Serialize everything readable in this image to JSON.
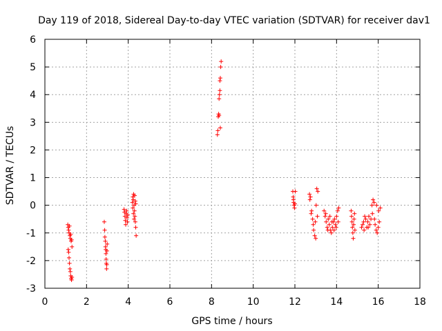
{
  "chart_data": {
    "type": "scatter",
    "title": "Day 119 of 2018, Sidereal Day-to-day VTEC variation (SDTVAR) for receiver dav1",
    "xlabel": "GPS time / hours",
    "ylabel": "SDTVAR / TECUs",
    "xlim": [
      0,
      18
    ],
    "ylim": [
      -3,
      6
    ],
    "x_ticks": [
      0,
      2,
      4,
      6,
      8,
      10,
      12,
      14,
      16,
      18
    ],
    "y_ticks": [
      -3,
      -2,
      -1,
      0,
      1,
      2,
      3,
      4,
      5,
      6
    ],
    "x_tick_labels": [
      "0",
      "2",
      "4",
      "6",
      "8",
      "10",
      "12",
      "14",
      "16",
      "18"
    ],
    "y_tick_labels": [
      "-3",
      "-2",
      "-1",
      "0",
      "1",
      "2",
      "3",
      "4",
      "5",
      "6"
    ],
    "grid": true,
    "marker": "+",
    "color": "#ff0000",
    "series": [
      {
        "name": "dav1",
        "points": [
          [
            1.1,
            -0.7
          ],
          [
            1.12,
            -0.8
          ],
          [
            1.14,
            -0.9
          ],
          [
            1.16,
            -1.0
          ],
          [
            1.18,
            -0.75
          ],
          [
            1.2,
            -1.1
          ],
          [
            1.22,
            -1.2
          ],
          [
            1.24,
            -1.05
          ],
          [
            1.26,
            -1.3
          ],
          [
            1.28,
            -1.25
          ],
          [
            1.3,
            -1.5
          ],
          [
            1.12,
            -1.6
          ],
          [
            1.14,
            -1.7
          ],
          [
            1.16,
            -1.9
          ],
          [
            1.18,
            -2.1
          ],
          [
            1.2,
            -2.3
          ],
          [
            1.22,
            -2.4
          ],
          [
            1.24,
            -2.55
          ],
          [
            1.26,
            -2.65
          ],
          [
            1.28,
            -2.7
          ],
          [
            1.3,
            -2.6
          ],
          [
            2.85,
            -0.6
          ],
          [
            2.87,
            -0.9
          ],
          [
            2.88,
            -1.15
          ],
          [
            2.9,
            -1.3
          ],
          [
            2.91,
            -1.5
          ],
          [
            2.92,
            -1.6
          ],
          [
            2.93,
            -1.75
          ],
          [
            2.94,
            -1.95
          ],
          [
            2.95,
            -2.1
          ],
          [
            2.96,
            -2.3
          ],
          [
            2.97,
            -2.15
          ],
          [
            2.98,
            -1.65
          ],
          [
            2.99,
            -1.4
          ],
          [
            3.8,
            -0.15
          ],
          [
            3.82,
            -0.25
          ],
          [
            3.84,
            -0.4
          ],
          [
            3.86,
            -0.55
          ],
          [
            3.88,
            -0.7
          ],
          [
            3.9,
            -0.3
          ],
          [
            3.92,
            -0.2
          ],
          [
            3.94,
            -0.45
          ],
          [
            3.96,
            -0.6
          ],
          [
            3.98,
            -0.35
          ],
          [
            4.2,
            0.1
          ],
          [
            4.22,
            0.3
          ],
          [
            4.24,
            0.2
          ],
          [
            4.26,
            0.4
          ],
          [
            4.28,
            0.0
          ],
          [
            4.3,
            -0.2
          ],
          [
            4.32,
            -0.4
          ],
          [
            4.34,
            -0.6
          ],
          [
            4.36,
            -0.8
          ],
          [
            4.38,
            -1.1
          ],
          [
            4.22,
            -0.1
          ],
          [
            4.25,
            -0.3
          ],
          [
            4.28,
            -0.5
          ],
          [
            4.31,
            0.35
          ],
          [
            4.34,
            0.15
          ],
          [
            4.36,
            0.05
          ],
          [
            8.28,
            2.55
          ],
          [
            8.3,
            2.7
          ],
          [
            8.32,
            3.2
          ],
          [
            8.34,
            3.3
          ],
          [
            8.36,
            3.85
          ],
          [
            8.38,
            4.0
          ],
          [
            8.4,
            4.5
          ],
          [
            8.42,
            4.6
          ],
          [
            8.44,
            5.0
          ],
          [
            8.46,
            5.2
          ],
          [
            8.4,
            4.15
          ],
          [
            8.36,
            3.25
          ],
          [
            8.42,
            2.8
          ],
          [
            11.9,
            0.5
          ],
          [
            11.92,
            0.3
          ],
          [
            11.94,
            0.1
          ],
          [
            11.96,
            0.0
          ],
          [
            11.98,
            -0.1
          ],
          [
            12.0,
            0.05
          ],
          [
            12.02,
            0.5
          ],
          [
            11.93,
            0.2
          ],
          [
            12.7,
            0.4
          ],
          [
            12.75,
            0.3
          ],
          [
            12.8,
            -0.2
          ],
          [
            12.85,
            -0.5
          ],
          [
            12.9,
            -0.9
          ],
          [
            12.95,
            -1.1
          ],
          [
            13.0,
            -1.2
          ],
          [
            13.05,
            0.6
          ],
          [
            13.1,
            0.5
          ],
          [
            12.72,
            0.2
          ],
          [
            12.78,
            -0.3
          ],
          [
            12.88,
            -0.7
          ],
          [
            12.98,
            -0.6
          ],
          [
            13.02,
            0.0
          ],
          [
            13.08,
            -0.4
          ],
          [
            13.4,
            -0.2
          ],
          [
            13.45,
            -0.4
          ],
          [
            13.5,
            -0.6
          ],
          [
            13.55,
            -0.8
          ],
          [
            13.6,
            -0.5
          ],
          [
            13.65,
            -0.7
          ],
          [
            13.7,
            -0.9
          ],
          [
            13.75,
            -1.0
          ],
          [
            13.8,
            -0.8
          ],
          [
            13.85,
            -0.6
          ],
          [
            13.9,
            -0.5
          ],
          [
            13.95,
            -0.7
          ],
          [
            14.0,
            -0.4
          ],
          [
            14.05,
            -0.2
          ],
          [
            14.1,
            -0.1
          ],
          [
            13.48,
            -0.3
          ],
          [
            13.58,
            -0.9
          ],
          [
            13.68,
            -0.4
          ],
          [
            13.78,
            -0.6
          ],
          [
            13.88,
            -0.9
          ],
          [
            13.98,
            -0.8
          ],
          [
            14.08,
            -0.6
          ],
          [
            14.7,
            -0.2
          ],
          [
            14.72,
            -0.4
          ],
          [
            14.74,
            -0.6
          ],
          [
            14.76,
            -0.8
          ],
          [
            14.78,
            -1.0
          ],
          [
            14.8,
            -1.2
          ],
          [
            14.82,
            -0.7
          ],
          [
            14.84,
            -0.5
          ],
          [
            14.86,
            -0.3
          ],
          [
            14.88,
            -0.9
          ],
          [
            15.2,
            -0.8
          ],
          [
            15.25,
            -0.7
          ],
          [
            15.3,
            -0.6
          ],
          [
            15.35,
            -0.4
          ],
          [
            15.4,
            -0.5
          ],
          [
            15.45,
            -0.8
          ],
          [
            15.5,
            -0.6
          ],
          [
            15.55,
            -0.4
          ],
          [
            15.6,
            -0.7
          ],
          [
            15.65,
            -0.5
          ],
          [
            15.7,
            0.0
          ],
          [
            15.75,
            0.2
          ],
          [
            15.8,
            0.1
          ],
          [
            15.85,
            -0.7
          ],
          [
            15.9,
            -0.9
          ],
          [
            15.95,
            -1.0
          ],
          [
            16.0,
            -0.8
          ],
          [
            16.05,
            -0.6
          ],
          [
            16.1,
            -0.1
          ],
          [
            15.32,
            -0.9
          ],
          [
            15.52,
            -0.8
          ],
          [
            15.72,
            -0.3
          ],
          [
            15.82,
            -0.5
          ],
          [
            15.92,
            0.0
          ],
          [
            16.02,
            -0.2
          ]
        ]
      }
    ]
  }
}
